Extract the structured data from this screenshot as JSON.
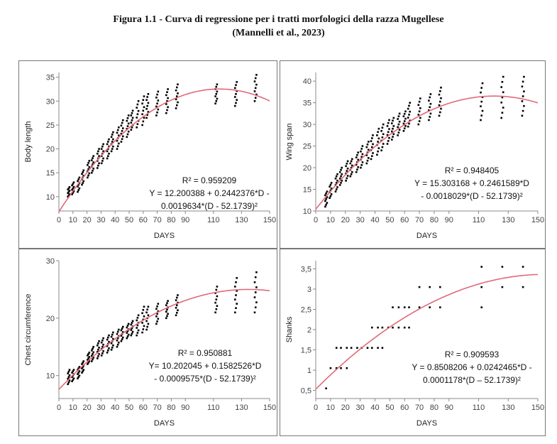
{
  "caption": {
    "line1": "Figura 1.1 - Curva di regressione per i tratti morfologici della razza Mugellese",
    "line2": "(Mannelli et al., 2023)"
  },
  "colors": {
    "curve": "#e06a78",
    "points": "#000000",
    "axis": "#888888"
  },
  "chart_data": [
    {
      "type": "scatter",
      "xlabel": "DAYS",
      "ylabel": "Body length",
      "xlim": [
        0,
        150
      ],
      "ylim": [
        7,
        36
      ],
      "xticks": [
        0,
        10,
        20,
        30,
        40,
        50,
        60,
        70,
        80,
        90,
        110,
        130,
        150
      ],
      "yticks": [
        10,
        15,
        20,
        25,
        30,
        35
      ],
      "ytick_labels": [
        "10",
        "15",
        "20",
        "25",
        "30",
        "35"
      ],
      "annotation": [
        "R² = 0.959209",
        "Y = 12.200388 + 0.2442376*D -",
        "0.0019634*(D - 52.1739)²"
      ],
      "curve": {
        "a": 12.200388,
        "b": 0.2442376,
        "c": 0.0019634,
        "m": 52.1739
      },
      "point_days": [
        7,
        10,
        14,
        17,
        21,
        24,
        28,
        31,
        35,
        38,
        42,
        45,
        49,
        52,
        56,
        60,
        63,
        70,
        77,
        84,
        112,
        126,
        140
      ],
      "point_ranges": [
        [
          10,
          12
        ],
        [
          10.5,
          13
        ],
        [
          11,
          14
        ],
        [
          12.5,
          15.5
        ],
        [
          14,
          17.5
        ],
        [
          15,
          18.5
        ],
        [
          16,
          20
        ],
        [
          17,
          21
        ],
        [
          18,
          22
        ],
        [
          19.5,
          23.5
        ],
        [
          20,
          24.5
        ],
        [
          21.5,
          26
        ],
        [
          22.5,
          27
        ],
        [
          24,
          28
        ],
        [
          24.5,
          30
        ],
        [
          25,
          31
        ],
        [
          26.5,
          31.5
        ],
        [
          27,
          32
        ],
        [
          27.5,
          32.5
        ],
        [
          28.5,
          33.5
        ],
        [
          29.5,
          33.5
        ],
        [
          29,
          34
        ],
        [
          30,
          35.5
        ]
      ]
    },
    {
      "type": "scatter",
      "xlabel": "DAYS",
      "ylabel": "Wing span",
      "xlim": [
        0,
        150
      ],
      "ylim": [
        10,
        42
      ],
      "xticks": [
        0,
        10,
        20,
        30,
        40,
        50,
        60,
        70,
        80,
        90,
        110,
        130,
        150
      ],
      "yticks": [
        10,
        15,
        20,
        25,
        30,
        35,
        40
      ],
      "ytick_labels": [
        "10",
        "15",
        "20",
        "25",
        "30",
        "35",
        "40"
      ],
      "annotation": [
        "R² = 0.948405",
        "Y = 15.303168 + 0.2461589*D",
        "- 0.0018029*(D - 52.1739)²"
      ],
      "curve": {
        "a": 15.303168,
        "b": 0.2461589,
        "c": 0.0018029,
        "m": 52.1739
      },
      "point_days": [
        7,
        10,
        14,
        17,
        21,
        24,
        28,
        31,
        35,
        38,
        42,
        45,
        49,
        52,
        56,
        60,
        63,
        70,
        77,
        84,
        112,
        126,
        140
      ],
      "point_ranges": [
        [
          11,
          14.5
        ],
        [
          13,
          16.5
        ],
        [
          14.5,
          18.5
        ],
        [
          16,
          20
        ],
        [
          17,
          21.5
        ],
        [
          18,
          22
        ],
        [
          19,
          23.5
        ],
        [
          20,
          25
        ],
        [
          21,
          26
        ],
        [
          22,
          27.5
        ],
        [
          23,
          29
        ],
        [
          24,
          30
        ],
        [
          25.5,
          31
        ],
        [
          26.5,
          31.5
        ],
        [
          27.5,
          32.5
        ],
        [
          28.5,
          33
        ],
        [
          29.5,
          35
        ],
        [
          30,
          36
        ],
        [
          31,
          37
        ],
        [
          32,
          38.5
        ],
        [
          31,
          39.5
        ],
        [
          31.5,
          41
        ],
        [
          32,
          41
        ]
      ]
    },
    {
      "type": "scatter",
      "xlabel": "DAYS",
      "ylabel": "Chest circumference",
      "xlim": [
        0,
        150
      ],
      "ylim": [
        6,
        30
      ],
      "xticks": [
        0,
        10,
        20,
        30,
        40,
        50,
        60,
        70,
        80,
        90,
        110,
        130,
        150
      ],
      "yticks": [
        10,
        20,
        30
      ],
      "ytick_labels": [
        "10",
        "20",
        "30"
      ],
      "annotation": [
        "R² = 0.950881",
        "Y= 10.202045 + 0.1582526*D",
        "- 0.0009575*(D - 52.1739)²"
      ],
      "curve": {
        "a": 10.202045,
        "b": 0.1582526,
        "c": 0.0009575,
        "m": 52.1739
      },
      "point_days": [
        7,
        10,
        14,
        17,
        21,
        24,
        28,
        31,
        35,
        38,
        42,
        45,
        49,
        52,
        56,
        60,
        63,
        70,
        77,
        84,
        112,
        126,
        140
      ],
      "point_ranges": [
        [
          8.5,
          11
        ],
        [
          9,
          11
        ],
        [
          9.5,
          11.5
        ],
        [
          10.5,
          12.5
        ],
        [
          12,
          14
        ],
        [
          12.5,
          15
        ],
        [
          13,
          16
        ],
        [
          13.5,
          16.5
        ],
        [
          14,
          17
        ],
        [
          14.5,
          17.5
        ],
        [
          15,
          18
        ],
        [
          16,
          18.5
        ],
        [
          16.5,
          19
        ],
        [
          17,
          19.5
        ],
        [
          17,
          20.5
        ],
        [
          17.5,
          22
        ],
        [
          18,
          22
        ],
        [
          19,
          22.5
        ],
        [
          20,
          23
        ],
        [
          20.5,
          24
        ],
        [
          21,
          25.5
        ],
        [
          21,
          27
        ],
        [
          21,
          28
        ]
      ]
    },
    {
      "type": "scatter",
      "xlabel": "DAYS",
      "ylabel": "Shanks",
      "xlim": [
        0,
        150
      ],
      "ylim": [
        0.3,
        3.7
      ],
      "xticks": [
        0,
        10,
        20,
        30,
        40,
        50,
        60,
        70,
        80,
        90,
        110,
        130,
        150
      ],
      "yticks": [
        0.5,
        1,
        1.5,
        2,
        2.5,
        3,
        3.5
      ],
      "ytick_labels": [
        "0,5",
        "1",
        "1,5",
        "2",
        "2,5",
        "3",
        "3,5"
      ],
      "annotation": [
        "R² = 0.909593",
        "Y = 0.8508206 + 0.0242465*D -",
        "0.0001178*(D – 52.1739)²"
      ],
      "curve": {
        "a": 0.8508206,
        "b": 0.0242465,
        "c": 0.0001178,
        "m": 52.1739
      },
      "points": [
        [
          7,
          0.55
        ],
        [
          10,
          1.05
        ],
        [
          14,
          1.05
        ],
        [
          14,
          1.55
        ],
        [
          17,
          1.05
        ],
        [
          17,
          1.55
        ],
        [
          21,
          1.05
        ],
        [
          21,
          1.55
        ],
        [
          24,
          1.55
        ],
        [
          28,
          1.55
        ],
        [
          31,
          1.55
        ],
        [
          35,
          1.55
        ],
        [
          38,
          1.55
        ],
        [
          38,
          2.05
        ],
        [
          42,
          1.55
        ],
        [
          42,
          2.05
        ],
        [
          45,
          1.55
        ],
        [
          45,
          2.05
        ],
        [
          49,
          2.05
        ],
        [
          52,
          2.05
        ],
        [
          52,
          2.55
        ],
        [
          56,
          2.05
        ],
        [
          56,
          2.55
        ],
        [
          60,
          2.05
        ],
        [
          60,
          2.55
        ],
        [
          63,
          2.05
        ],
        [
          63,
          2.55
        ],
        [
          70,
          2.55
        ],
        [
          70,
          3.05
        ],
        [
          77,
          2.55
        ],
        [
          77,
          3.05
        ],
        [
          84,
          2.55
        ],
        [
          84,
          3.05
        ],
        [
          112,
          2.55
        ],
        [
          112,
          3.05
        ],
        [
          112,
          3.55
        ],
        [
          126,
          3.05
        ],
        [
          126,
          3.55
        ],
        [
          140,
          3.05
        ],
        [
          140,
          3.55
        ]
      ]
    }
  ]
}
